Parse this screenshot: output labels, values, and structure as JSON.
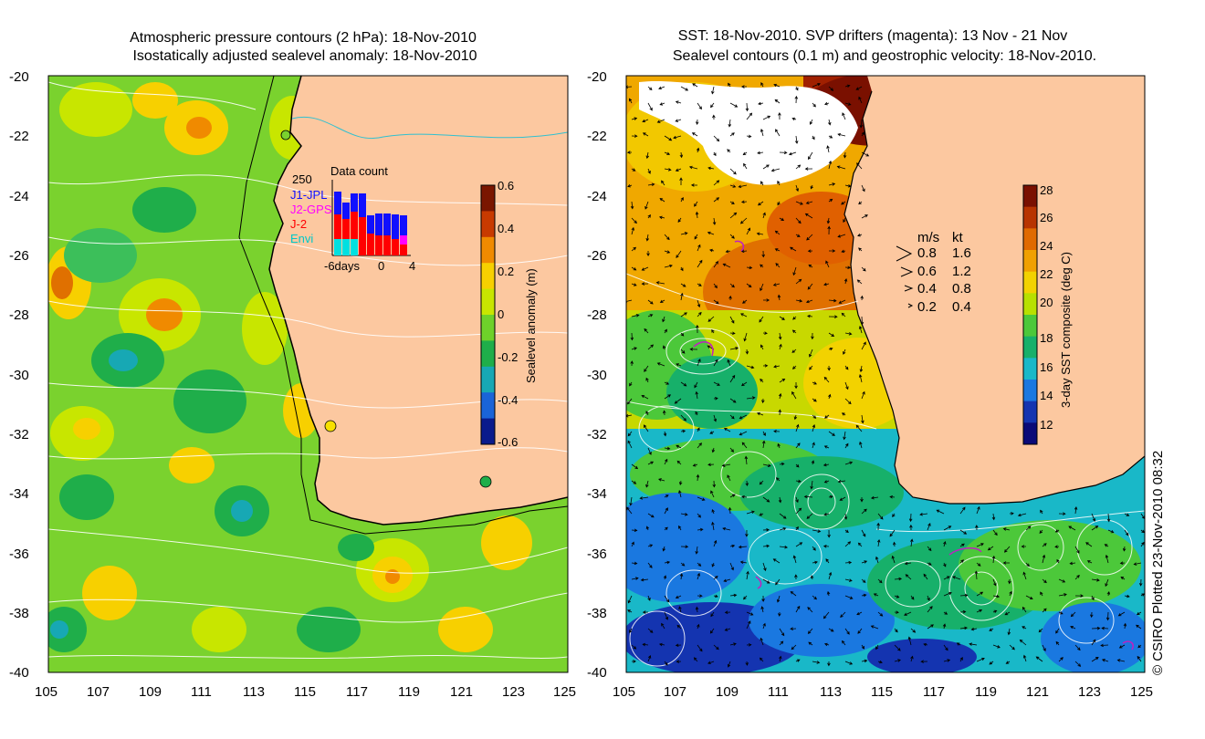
{
  "left_panel": {
    "title_line1": "Atmospheric pressure contours (2 hPa): 18-Nov-2010",
    "title_line2": "Isostatically adjusted sealevel anomaly: 18-Nov-2010",
    "colorbar": {
      "label": "Sealevel anomaly (m)",
      "ticks": [
        "0.6",
        "0.4",
        "0.2",
        "0",
        "-0.2",
        "-0.4",
        "-0.6"
      ],
      "colors": [
        "#7a1600",
        "#c83a00",
        "#f08a00",
        "#f7d000",
        "#c8e600",
        "#6ed12a",
        "#1fae4a",
        "#17a8b4",
        "#1a64d8",
        "#0a1b8c"
      ]
    },
    "inset": {
      "title": "Data count",
      "max_label": "250",
      "x_labels": [
        "-6days",
        "0",
        "4"
      ],
      "legend": [
        {
          "label": "J1-JPL",
          "color": "#1010ff"
        },
        {
          "label": "J2-GPS",
          "color": "#ff00ff"
        },
        {
          "label": "J-2",
          "color": "#ff0000"
        },
        {
          "label": "Envi",
          "color": "#00e0e0"
        }
      ]
    }
  },
  "right_panel": {
    "title_line1": "SST: 18-Nov-2010. SVP drifters (magenta): 13 Nov - 21 Nov",
    "title_line2": "Sealevel contours (0.1 m) and geostrophic velocity: 18-Nov-2010.",
    "colorbar": {
      "label": "3-day SST composite (deg C)",
      "ticks": [
        "28",
        "26",
        "24",
        "22",
        "20",
        "18",
        "16",
        "14",
        "12"
      ],
      "colors": [
        "#7a1000",
        "#b83400",
        "#e06a00",
        "#f0a000",
        "#f2d200",
        "#b8e000",
        "#4cc83a",
        "#17b06a",
        "#19b8c8",
        "#1a78e0",
        "#1434b0",
        "#0a0a78"
      ]
    },
    "speed_legend": {
      "header_ms": "m/s",
      "header_kt": "kt",
      "rows": [
        {
          "ms": "0.8",
          "kt": "1.6"
        },
        {
          "ms": "0.6",
          "kt": "1.2"
        },
        {
          "ms": "0.4",
          "kt": "0.8"
        },
        {
          "ms": "0.2",
          "kt": "0.4"
        }
      ]
    }
  },
  "axes": {
    "lon_ticks": [
      "105",
      "107",
      "109",
      "111",
      "113",
      "115",
      "117",
      "119",
      "121",
      "123",
      "125"
    ],
    "lat_ticks": [
      "-20",
      "-22",
      "-24",
      "-26",
      "-28",
      "-30",
      "-32",
      "-34",
      "-36",
      "-38",
      "-40"
    ]
  },
  "credit": "© CSIRO Plotted 23-Nov-2010 08:32",
  "colors": {
    "land": "#fcc8a0",
    "ocean_green": "#7ad22e",
    "coast": "#000000"
  }
}
